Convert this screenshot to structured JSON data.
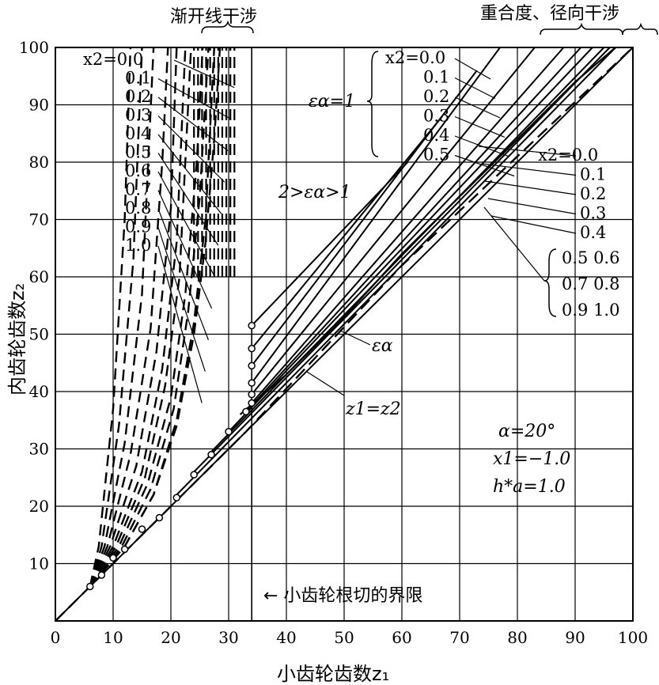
{
  "chart_data": {
    "type": "line",
    "xlabel": "小齿轮齿数z₁",
    "ylabel": "内齿轮齿数z₂",
    "xlim": [
      0,
      100
    ],
    "ylim": [
      0,
      100
    ],
    "x_ticks": [
      "0",
      "10",
      "20",
      "30",
      "40",
      "50",
      "60",
      "70",
      "80",
      "90",
      "100"
    ],
    "y_ticks": [
      "10",
      "20",
      "30",
      "40",
      "50",
      "60",
      "70",
      "80",
      "90",
      "100"
    ],
    "grid": true,
    "region_labels": {
      "involute_interference": "渐开线干涉",
      "contact_radial_interference": "重合度、径向干涉"
    },
    "contact_ratio_one": "εα=1",
    "contact_ratio_range": "2>εα>1",
    "contact_ratio_curve": "εα",
    "equal_teeth_line": "z1=z2",
    "undercut_limit": "← 小齿轮根切的界限",
    "parameters": [
      "α=20°",
      "x1=−1.0",
      "h*a=1.0"
    ],
    "x2_values": [
      "0.0",
      "0.1",
      "0.2",
      "0.3",
      "0.4",
      "0.5",
      "0.6",
      "0.7",
      "0.8",
      "0.9",
      "1.0"
    ],
    "left_label_prefix": "x2=",
    "mid_label_values": [
      "0.0",
      "0.1",
      "0.2",
      "0.3",
      "0.4",
      "0.5"
    ],
    "right_label_values": [
      "0.0",
      "0.1",
      "0.2",
      "0.3",
      "0.4"
    ],
    "right_group_values": [
      [
        "0.5",
        "0.6"
      ],
      [
        "0.7",
        "0.8"
      ],
      [
        "0.9",
        "1.0"
      ]
    ],
    "series": [
      {
        "name": "0.0",
        "interference_x": 31.0,
        "contact_start": [
          34.0,
          51.5
        ],
        "contact_end": [
          61.0,
          80.0
        ]
      },
      {
        "name": "0.1",
        "interference_x": 30.3,
        "contact_start": [
          34.0,
          47.5
        ],
        "contact_end": [
          67.0,
          88.0
        ]
      },
      {
        "name": "0.2",
        "interference_x": 29.6,
        "contact_start": [
          34.0,
          44.5
        ],
        "contact_end": [
          73.0,
          96.0
        ]
      },
      {
        "name": "0.3",
        "interference_x": 28.9,
        "contact_start": [
          34.0,
          41.5
        ],
        "contact_end": [
          77.0,
          100.0
        ]
      },
      {
        "name": "0.4",
        "interference_x": 28.2,
        "contact_start": [
          34.0,
          39.5
        ],
        "contact_end": [
          83.0,
          100.0
        ]
      },
      {
        "name": "0.5",
        "interference_x": 27.5,
        "contact_start": [
          34.0,
          38.0
        ],
        "contact_end": [
          88.0,
          100.0
        ]
      },
      {
        "name": "0.6",
        "interference_x": 26.8,
        "contact_start": [
          33.0,
          36.5
        ],
        "contact_end": [
          91.0,
          100.0
        ]
      },
      {
        "name": "0.7",
        "interference_x": 26.1,
        "contact_start": [
          30.0,
          33.0
        ],
        "contact_end": [
          93.0,
          100.0
        ]
      },
      {
        "name": "0.8",
        "interference_x": 25.4,
        "contact_start": [
          27.0,
          29.5
        ],
        "contact_end": [
          95.0,
          100.0
        ]
      },
      {
        "name": "0.9",
        "interference_x": 24.7,
        "contact_start": [
          24.0,
          26.0
        ],
        "contact_end": [
          96.0,
          100.0
        ]
      },
      {
        "name": "1.0",
        "interference_x": 24.0,
        "contact_start": [
          21.0,
          22.0
        ],
        "contact_end": [
          97.0,
          100.0
        ]
      }
    ],
    "interference_curves": [
      {
        "name": "0.0",
        "points": [
          [
            6,
            6
          ],
          [
            12,
            13
          ],
          [
            17,
            22
          ],
          [
            21,
            34
          ],
          [
            24,
            50
          ],
          [
            26,
            66
          ],
          [
            27.5,
            84
          ],
          [
            28.5,
            100
          ]
        ]
      },
      {
        "name": "0.1",
        "points": [
          [
            6,
            6
          ],
          [
            12,
            13
          ],
          [
            17,
            22
          ],
          [
            21,
            35
          ],
          [
            24,
            52
          ],
          [
            26,
            70
          ],
          [
            27.5,
            100
          ]
        ]
      },
      {
        "name": "0.2",
        "points": [
          [
            6,
            6
          ],
          [
            11.5,
            13
          ],
          [
            16.5,
            23
          ],
          [
            20.5,
            37
          ],
          [
            23,
            54
          ],
          [
            25,
            74
          ],
          [
            26.5,
            100
          ]
        ]
      },
      {
        "name": "0.3",
        "points": [
          [
            6,
            6
          ],
          [
            11,
            13
          ],
          [
            16,
            24
          ],
          [
            20,
            39
          ],
          [
            22.5,
            57
          ],
          [
            24.5,
            80
          ],
          [
            25.5,
            100
          ]
        ]
      },
      {
        "name": "0.4",
        "points": [
          [
            6,
            6
          ],
          [
            10.5,
            13
          ],
          [
            15.5,
            25
          ],
          [
            19,
            41
          ],
          [
            21.5,
            60
          ],
          [
            23.5,
            100
          ]
        ]
      },
      {
        "name": "0.5",
        "points": [
          [
            6,
            6
          ],
          [
            10,
            13
          ],
          [
            15,
            26
          ],
          [
            18.5,
            44
          ],
          [
            21,
            66
          ],
          [
            22.5,
            100
          ]
        ]
      },
      {
        "name": "0.6",
        "points": [
          [
            6,
            6
          ],
          [
            9.5,
            13
          ],
          [
            14,
            27
          ],
          [
            17.5,
            47
          ],
          [
            20,
            72
          ],
          [
            21,
            100
          ]
        ]
      },
      {
        "name": "0.7",
        "points": [
          [
            6,
            6
          ],
          [
            9,
            13
          ],
          [
            13,
            29
          ],
          [
            16.5,
            51
          ],
          [
            18.5,
            80
          ],
          [
            19.5,
            100
          ]
        ]
      },
      {
        "name": "0.8",
        "points": [
          [
            6,
            6
          ],
          [
            8.5,
            13
          ],
          [
            12,
            31
          ],
          [
            15,
            57
          ],
          [
            17,
            100
          ]
        ]
      },
      {
        "name": "0.9",
        "points": [
          [
            6,
            6
          ],
          [
            8,
            13
          ],
          [
            11,
            34
          ],
          [
            13.5,
            63
          ],
          [
            15,
            100
          ]
        ]
      },
      {
        "name": "1.0",
        "points": [
          [
            6,
            6
          ],
          [
            7.5,
            13
          ],
          [
            10,
            37
          ],
          [
            12,
            70
          ],
          [
            13,
            100
          ]
        ]
      }
    ],
    "circle_markers": [
      [
        6,
        6
      ],
      [
        8,
        8
      ],
      [
        10,
        11
      ],
      [
        12,
        12.5
      ],
      [
        15,
        16
      ],
      [
        18,
        18
      ],
      [
        21,
        21.5
      ],
      [
        24,
        25.5
      ],
      [
        27,
        29
      ],
      [
        30,
        33
      ],
      [
        33,
        36.5
      ],
      [
        34,
        38
      ],
      [
        34,
        39.5
      ],
      [
        34,
        41.5
      ],
      [
        34,
        44.5
      ],
      [
        34,
        47.5
      ],
      [
        34,
        51.5
      ]
    ],
    "undercut_x": 34,
    "epsilon_curve_points": [
      [
        32,
        36
      ],
      [
        40,
        43
      ],
      [
        50,
        53
      ],
      [
        60,
        64
      ],
      [
        70,
        74
      ],
      [
        80,
        84
      ],
      [
        90,
        94
      ],
      [
        97,
        100
      ]
    ],
    "boundary_dashed_points": [
      [
        0,
        0
      ],
      [
        33,
        33
      ],
      [
        60,
        62
      ],
      [
        100,
        100
      ]
    ]
  }
}
